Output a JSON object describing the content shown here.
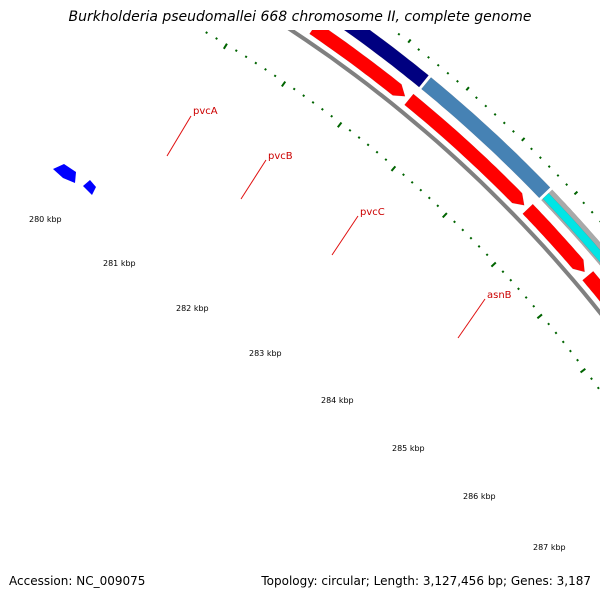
{
  "title": "Burkholderia pseudomallei 668 chromosome II, complete genome",
  "footer": {
    "accession": "Accession: NC_009075",
    "topology": "Topology: circular; Length: 3,127,456 bp; Genes: 3,187"
  },
  "genes": [
    "pvcA",
    "pvcB",
    "pvcC",
    "asnB"
  ],
  "kbp_labels": [
    "280 kbp",
    "281 kbp",
    "282 kbp",
    "283 kbp",
    "284 kbp",
    "285 kbp",
    "286 kbp",
    "287 kbp"
  ],
  "colors": {
    "cds_red": "#ff0000",
    "feature_navy": "#000080",
    "feature_steelblue": "#4682b4",
    "feature_cyan": "#00e5e5",
    "feature_blue": "#0000ff",
    "feature_gray": "#a9a9a9",
    "backbone": "#808080",
    "ticks": "#006400",
    "label_red": "#cc0000"
  }
}
